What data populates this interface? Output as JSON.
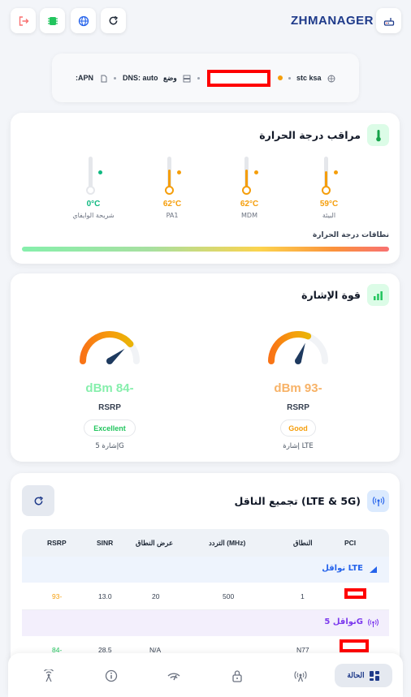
{
  "header": {
    "brand": "ZHMANAGER",
    "icons": [
      "logout-icon",
      "chip-icon",
      "globe-icon",
      "refresh-icon",
      "router-icon"
    ]
  },
  "info_bar": {
    "apn": ":APN",
    "dns": "DNS: auto",
    "mode": "وضع",
    "operator": "stc ksa"
  },
  "temperature": {
    "title": "مراقب درجة الحرارة",
    "sensors": [
      {
        "label": "البيئة",
        "value": "59°C",
        "color": "#f59e0b",
        "level": 0.55
      },
      {
        "label": "MDM",
        "value": "62°C",
        "color": "#f59e0b",
        "level": 0.6
      },
      {
        "label": "PA1",
        "value": "62°C",
        "color": "#f59e0b",
        "level": 0.6
      },
      {
        "label": "شريحة الوايفاي",
        "value": "0°C",
        "color": "#10b981",
        "level": 0
      }
    ],
    "range_label": "نطاقات درجة الحرارة"
  },
  "signal": {
    "title": "قوة الإشارة",
    "gauges": [
      {
        "value": "dBm 93-",
        "type": "RSRP",
        "quality": "Good",
        "network": "إشارة LTE",
        "color": "#f7b267",
        "badge_color": "#f59e0b",
        "level": 0.62
      },
      {
        "value": "dBm 84-",
        "type": "RSRP",
        "quality": "Excellent",
        "network": "إشارة 5G",
        "color": "#86efac",
        "badge_color": "#22c55e",
        "level": 0.78
      }
    ]
  },
  "carrier": {
    "title": "تجميع الناقل (LTE & 5G)",
    "columns": [
      "PCI",
      "النطاق",
      "التردد (MHz)",
      "عرض النطاق",
      "SINR",
      "RSRP"
    ],
    "lte_label": "نواقل LTE",
    "nr_label": "نواقل 5G",
    "lte_rows": [
      {
        "band": "1",
        "freq": "500",
        "bw": "20",
        "sinr": "13.0",
        "rsrp": "93-"
      }
    ],
    "nr_rows": [
      {
        "band": "N77",
        "freq": "",
        "bw": "N/A",
        "sinr": "28.5",
        "rsrp": "84-"
      }
    ]
  },
  "bottom_nav": {
    "active_label": "الحالة",
    "items": [
      "status-icon",
      "antenna-icon",
      "lock-icon",
      "wifi-icon",
      "info-icon",
      "broadcast-icon"
    ]
  },
  "colors": {
    "brand": "#1e3a8a",
    "warning": "#f59e0b",
    "success": "#22c55e",
    "lte": "#2563eb",
    "nr": "#7c3aed"
  }
}
